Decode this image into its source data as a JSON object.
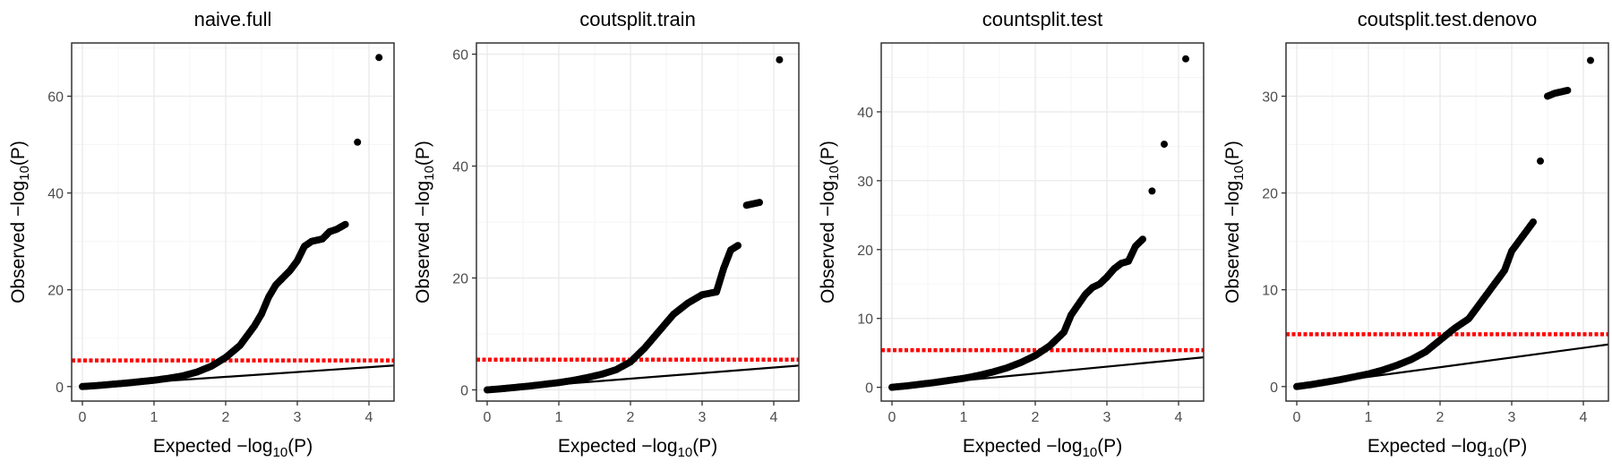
{
  "colors": {
    "points": "#000000",
    "threshold": "#ff0000",
    "reference_line": "#000000",
    "grid": "#ebebeb",
    "panel_border": "#333333"
  },
  "chart_data": [
    {
      "type": "scatter",
      "title": "naive.full",
      "xlabel": "Expected −log10(P)",
      "ylabel": "Observed −log10(P)",
      "xlim": [
        -0.15,
        4.35
      ],
      "ylim": [
        -3,
        71
      ],
      "xticks": [
        0,
        1,
        2,
        3,
        4
      ],
      "yticks": [
        0,
        20,
        40,
        60
      ],
      "threshold": 5.4,
      "grid": true,
      "points": [
        [
          0,
          0
        ],
        [
          0.2,
          0.2
        ],
        [
          0.4,
          0.45
        ],
        [
          0.6,
          0.7
        ],
        [
          0.8,
          1.0
        ],
        [
          1.0,
          1.3
        ],
        [
          1.2,
          1.7
        ],
        [
          1.4,
          2.2
        ],
        [
          1.6,
          3.0
        ],
        [
          1.8,
          4.2
        ],
        [
          2.0,
          6.0
        ],
        [
          2.2,
          8.5
        ],
        [
          2.4,
          12.5
        ],
        [
          2.5,
          15.0
        ],
        [
          2.6,
          18.5
        ],
        [
          2.7,
          21.0
        ],
        [
          2.8,
          22.5
        ],
        [
          2.9,
          24.0
        ],
        [
          3.0,
          26.0
        ],
        [
          3.1,
          29.0
        ],
        [
          3.2,
          30.0
        ],
        [
          3.35,
          30.5
        ],
        [
          3.45,
          32.0
        ],
        [
          3.55,
          32.5
        ],
        [
          3.67,
          33.5
        ],
        [
          3.84,
          50.5
        ],
        [
          4.14,
          68.0
        ]
      ]
    },
    {
      "type": "scatter",
      "title": "coutsplit.train",
      "xlabel": "Expected −log10(P)",
      "ylabel": "Observed −log10(P)",
      "xlim": [
        -0.15,
        4.35
      ],
      "ylim": [
        -2,
        62
      ],
      "xticks": [
        0,
        1,
        2,
        3,
        4
      ],
      "yticks": [
        0,
        20,
        40,
        60
      ],
      "threshold": 5.4,
      "grid": true,
      "points": [
        [
          0,
          0
        ],
        [
          0.2,
          0.2
        ],
        [
          0.4,
          0.45
        ],
        [
          0.6,
          0.7
        ],
        [
          0.8,
          1.0
        ],
        [
          1.0,
          1.3
        ],
        [
          1.2,
          1.7
        ],
        [
          1.4,
          2.2
        ],
        [
          1.6,
          2.8
        ],
        [
          1.8,
          3.6
        ],
        [
          2.0,
          5.0
        ],
        [
          2.2,
          7.5
        ],
        [
          2.4,
          10.5
        ],
        [
          2.6,
          13.5
        ],
        [
          2.8,
          15.5
        ],
        [
          3.0,
          17.0
        ],
        [
          3.2,
          17.5
        ],
        [
          3.3,
          21.7
        ],
        [
          3.4,
          25.0
        ],
        [
          3.5,
          25.8
        ],
        [
          3.62,
          33.0
        ],
        [
          3.8,
          33.5
        ],
        [
          4.08,
          59.0
        ]
      ]
    },
    {
      "type": "scatter",
      "title": "countsplit.test",
      "xlabel": "Expected −log10(P)",
      "ylabel": "Observed −log10(P)",
      "xlim": [
        -0.15,
        4.35
      ],
      "ylim": [
        -2,
        50
      ],
      "xticks": [
        0,
        1,
        2,
        3,
        4
      ],
      "yticks": [
        0,
        10,
        20,
        30,
        40
      ],
      "threshold": 5.4,
      "grid": true,
      "points": [
        [
          0,
          0
        ],
        [
          0.2,
          0.2
        ],
        [
          0.4,
          0.45
        ],
        [
          0.6,
          0.7
        ],
        [
          0.8,
          1.0
        ],
        [
          1.0,
          1.3
        ],
        [
          1.2,
          1.7
        ],
        [
          1.4,
          2.2
        ],
        [
          1.6,
          2.8
        ],
        [
          1.8,
          3.6
        ],
        [
          2.0,
          4.6
        ],
        [
          2.2,
          6.0
        ],
        [
          2.4,
          8.0
        ],
        [
          2.5,
          10.5
        ],
        [
          2.6,
          12.0
        ],
        [
          2.7,
          13.5
        ],
        [
          2.8,
          14.5
        ],
        [
          2.9,
          15.0
        ],
        [
          3.0,
          16.0
        ],
        [
          3.1,
          17.2
        ],
        [
          3.2,
          18.0
        ],
        [
          3.3,
          18.3
        ],
        [
          3.4,
          20.5
        ],
        [
          3.5,
          21.5
        ],
        [
          3.63,
          28.5
        ],
        [
          3.8,
          35.3
        ],
        [
          4.1,
          47.7
        ]
      ]
    },
    {
      "type": "scatter",
      "title": "coutsplit.test.denovo",
      "xlabel": "Expected −log10(P)",
      "ylabel": "Observed −log10(P)",
      "xlim": [
        -0.15,
        4.35
      ],
      "ylim": [
        -1.5,
        35.5
      ],
      "xticks": [
        0,
        1,
        2,
        3,
        4
      ],
      "yticks": [
        0,
        10,
        20,
        30
      ],
      "threshold": 5.4,
      "grid": true,
      "points": [
        [
          0,
          0
        ],
        [
          0.2,
          0.2
        ],
        [
          0.4,
          0.45
        ],
        [
          0.6,
          0.7
        ],
        [
          0.8,
          1.0
        ],
        [
          1.0,
          1.3
        ],
        [
          1.2,
          1.7
        ],
        [
          1.4,
          2.2
        ],
        [
          1.6,
          2.8
        ],
        [
          1.8,
          3.6
        ],
        [
          2.0,
          4.8
        ],
        [
          2.2,
          6.0
        ],
        [
          2.4,
          7.0
        ],
        [
          2.5,
          8.0
        ],
        [
          2.6,
          9.0
        ],
        [
          2.7,
          10.0
        ],
        [
          2.8,
          11.0
        ],
        [
          2.9,
          12.0
        ],
        [
          3.0,
          14.0
        ],
        [
          3.1,
          15.0
        ],
        [
          3.2,
          16.0
        ],
        [
          3.3,
          17.0
        ],
        [
          3.4,
          23.3
        ],
        [
          3.5,
          30.0
        ],
        [
          3.6,
          30.3
        ],
        [
          3.78,
          30.6
        ],
        [
          4.1,
          33.7
        ]
      ]
    }
  ]
}
